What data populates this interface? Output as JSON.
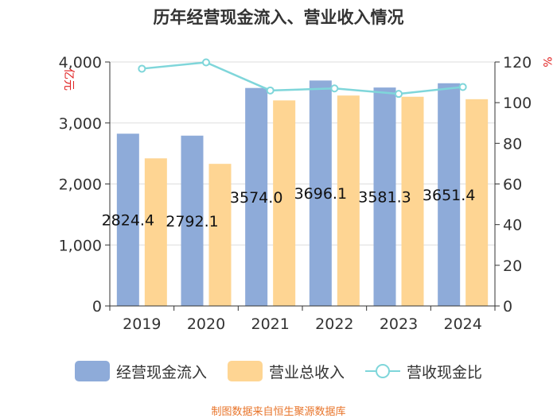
{
  "chart_data": {
    "type": "bar",
    "title": "历年经营现金流入、营业收入情况",
    "categories": [
      "2019",
      "2020",
      "2021",
      "2022",
      "2023",
      "2024"
    ],
    "series": [
      {
        "name": "经营现金流入",
        "axis": "left",
        "type": "bar",
        "color": "#8eabd9",
        "values": [
          2824.4,
          2792.1,
          3574.0,
          3696.1,
          3581.3,
          3651.4
        ],
        "labels": [
          "2824.4",
          "2792.1",
          "3574.0",
          "3696.1",
          "3581.3",
          "3651.4"
        ]
      },
      {
        "name": "营业总收入",
        "axis": "left",
        "type": "bar",
        "color": "#fed593",
        "values": [
          2420,
          2330,
          3370,
          3450,
          3430,
          3390
        ]
      },
      {
        "name": "营收现金比",
        "axis": "right",
        "type": "line",
        "color": "#7fd6da",
        "values": [
          116.7,
          119.8,
          106.0,
          107.0,
          104.3,
          107.7
        ]
      }
    ],
    "ylabel_left": "亿元",
    "ylabel_right": "%",
    "ylim_left": [
      0,
      4000
    ],
    "ylim_right": [
      0,
      120
    ],
    "yticks_left": [
      "0",
      "1,000",
      "2,000",
      "3,000",
      "4,000"
    ],
    "yticks_right": [
      "0",
      "20",
      "40",
      "60",
      "80",
      "100",
      "120"
    ],
    "legend_position": "bottom",
    "grid": true
  },
  "source": "制图数据来自恒生聚源数据库"
}
